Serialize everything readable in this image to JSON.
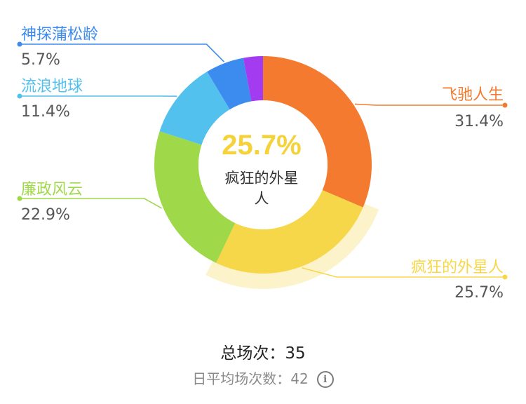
{
  "chart_data": {
    "type": "pie",
    "variant": "donut",
    "slices": [
      {
        "label": "飞驰人生",
        "pct_text": "31.4%",
        "value": 31.4,
        "color": "#f47a2f"
      },
      {
        "label": "疯狂的外星人",
        "pct_text": "25.7%",
        "value": 25.7,
        "color": "#f7d74a",
        "highlight": true
      },
      {
        "label": "廉政风云",
        "pct_text": "22.9%",
        "value": 22.9,
        "color": "#9fd94a"
      },
      {
        "label": "流浪地球",
        "pct_text": "11.4%",
        "value": 11.4,
        "color": "#52c1ee"
      },
      {
        "label": "神探蒲松龄",
        "pct_text": "5.7%",
        "value": 5.7,
        "color": "#3c8bef"
      },
      {
        "label": "",
        "pct_text": "",
        "value": 2.9,
        "color": "#a33cf0"
      }
    ],
    "center": {
      "pct": "25.7%",
      "label_line1": "疯狂的外星",
      "label_line2": "人"
    }
  },
  "summary": {
    "total_label": "总场次：",
    "total_value": "35",
    "daily_label": "日平均场次数：",
    "daily_value": "42",
    "info_glyph": "i"
  },
  "colors": {
    "label_text": "#555555",
    "center_pct": "#f5d23a",
    "highlight_glow": "#fbe9a0"
  }
}
